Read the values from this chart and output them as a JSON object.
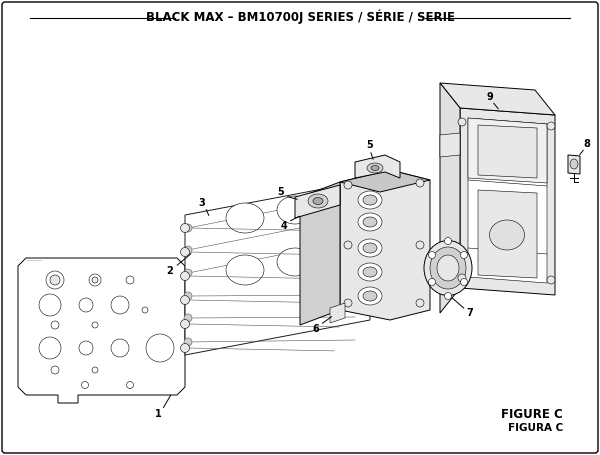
{
  "title": "BLACK MAX – BM10700J SERIES / SÉRIE / SERIE",
  "figure_label": "FIGURE C",
  "figura_label": "FIGURA C",
  "bg_color": "#ffffff",
  "lw": 0.7,
  "thin_lw": 0.4,
  "label_fs": 7.0,
  "title_fs": 8.5,
  "fig_fs": 8.5
}
